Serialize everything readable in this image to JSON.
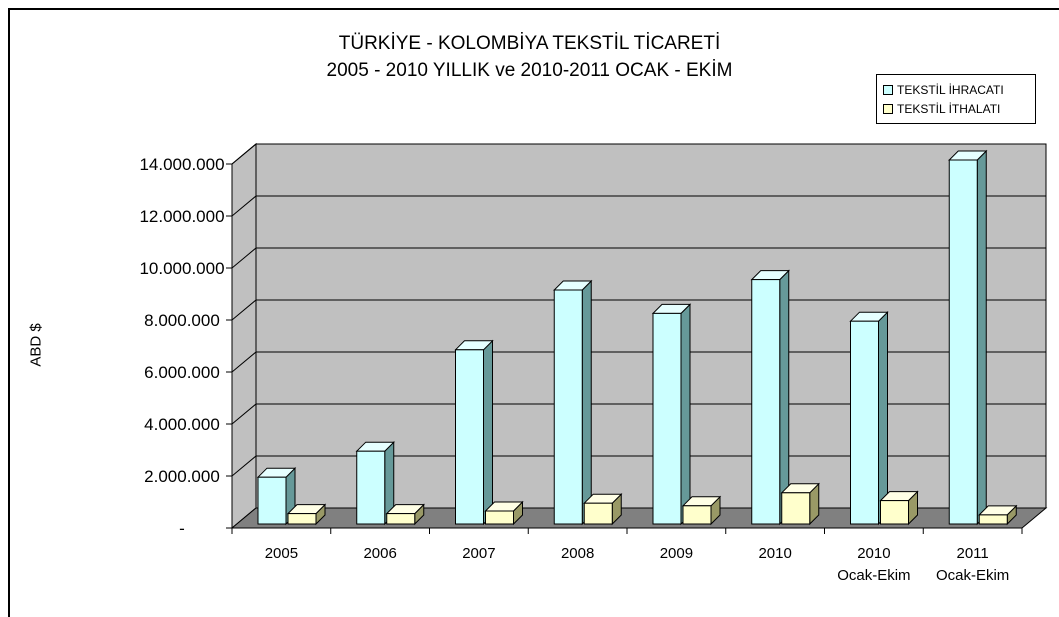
{
  "chart_data": {
    "type": "bar",
    "title_line1": "TÜRKİYE - KOLOMBİYA TEKSTİL TİCARETİ",
    "title_line2": "2005 - 2010 YILLIK ve 2010-2011 OCAK - EKİM",
    "xlabel": "",
    "ylabel": "ABD $",
    "ylim": [
      0,
      14000000
    ],
    "y_ticks": [
      {
        "value": 0,
        "label": "-"
      },
      {
        "value": 2000000,
        "label": "2.000.000"
      },
      {
        "value": 4000000,
        "label": "4.000.000"
      },
      {
        "value": 6000000,
        "label": "6.000.000"
      },
      {
        "value": 8000000,
        "label": "8.000.000"
      },
      {
        "value": 10000000,
        "label": "10.000.000"
      },
      {
        "value": 12000000,
        "label": "12.000.000"
      },
      {
        "value": 14000000,
        "label": "14.000.000"
      }
    ],
    "categories": [
      [
        "2005"
      ],
      [
        "2006"
      ],
      [
        "2007"
      ],
      [
        "2008"
      ],
      [
        "2009"
      ],
      [
        "2010"
      ],
      [
        "2010",
        "Ocak-Ekim"
      ],
      [
        "2011",
        "Ocak-Ekim"
      ]
    ],
    "series": [
      {
        "name": "TEKSTİL İHRACATI",
        "color": "#CCFFFF",
        "side_color": "#669999",
        "top_color": "#E6FFFF",
        "values": [
          1800000,
          2800000,
          6700000,
          9000000,
          8100000,
          9400000,
          7800000,
          14000000
        ]
      },
      {
        "name": "TEKSTİL İTHALATI",
        "color": "#FFFFCC",
        "side_color": "#999966",
        "top_color": "#FFFFE6",
        "values": [
          400000,
          400000,
          500000,
          800000,
          700000,
          1200000,
          900000,
          350000
        ]
      }
    ],
    "legend_position": "top-right",
    "grid": true,
    "wall_color": "#C0C0C0",
    "floor_color": "#808080"
  }
}
